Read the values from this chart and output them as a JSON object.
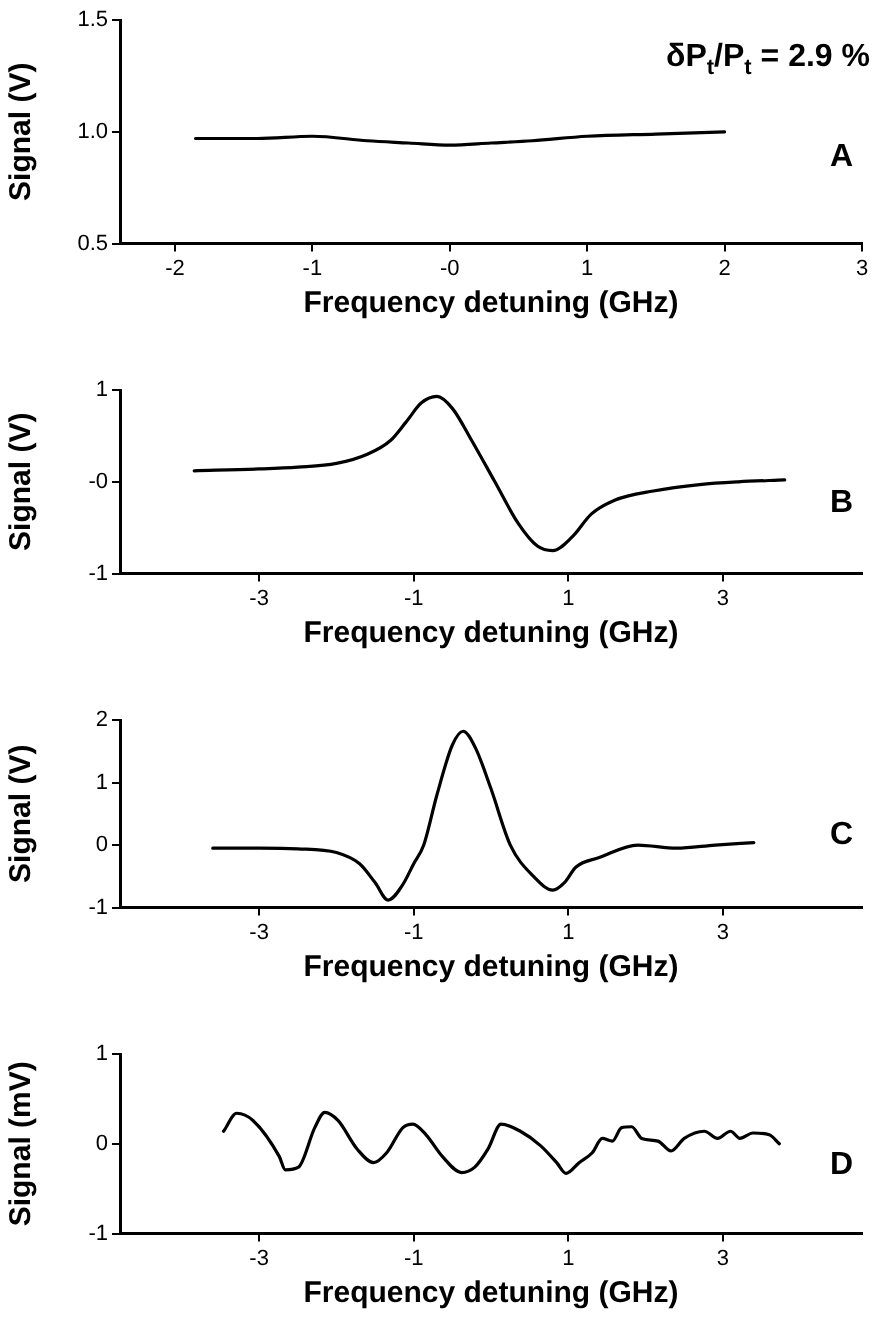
{
  "chart_data": [
    {
      "type": "line",
      "xlabel": "Frequency detuning (GHz)",
      "ylabel": "Signal (V)",
      "xlim": [
        -2.4,
        3
      ],
      "xticks": [
        -2,
        -1,
        {
          "value": 0,
          "label": "-0"
        },
        1,
        2,
        3
      ],
      "ylim": [
        0.5,
        1.5
      ],
      "yticks": [
        0.5,
        {
          "value": 1,
          "label": "1.0"
        },
        1.5
      ],
      "grid": false,
      "legend": false,
      "marker": "none",
      "annotations": [
        "δP$_{t}$/P$_{t}$ = 2.9 %",
        "A"
      ],
      "series": [
        {
          "color": "#000000",
          "x": [
            -1.85,
            -1.4,
            -1,
            -0.6,
            -0.3,
            0,
            0.3,
            0.6,
            1,
            1.5,
            2
          ],
          "values": [
            0.97,
            0.97,
            0.98,
            0.96,
            0.95,
            0.94,
            0.95,
            0.96,
            0.98,
            0.99,
            1.0
          ]
        }
      ]
    },
    {
      "type": "line",
      "xlabel": "Frequency detuning (GHz)",
      "ylabel": "Signal (V)",
      "xlim": [
        -4.8,
        4.8
      ],
      "xticks": [
        -3,
        -1,
        1,
        3
      ],
      "ylim": [
        -1,
        1
      ],
      "yticks": [
        -1,
        {
          "value": 0,
          "label": "-0"
        },
        1
      ],
      "grid": false,
      "legend": false,
      "marker": "none",
      "annotations": [
        "B"
      ],
      "series": [
        {
          "color": "#000000",
          "x": [
            -3.84,
            -3,
            -2.5,
            -2,
            -1.6,
            -1.3,
            -1.1,
            -0.9,
            -0.7,
            -0.5,
            -0.25,
            0.05,
            0.35,
            0.6,
            0.8,
            1.05,
            1.3,
            1.6,
            2.1,
            2.7,
            3.2,
            3.8
          ],
          "values": [
            0.12,
            0.14,
            0.16,
            0.2,
            0.3,
            0.45,
            0.65,
            0.86,
            0.93,
            0.8,
            0.45,
            0,
            -0.45,
            -0.7,
            -0.75,
            -0.6,
            -0.35,
            -0.2,
            -0.1,
            -0.03,
            0,
            0.02
          ]
        }
      ]
    },
    {
      "type": "line",
      "xlabel": "Frequency detuning (GHz)",
      "ylabel": "Signal (V)",
      "xlim": [
        -4.8,
        4.8
      ],
      "xticks": [
        -3,
        -1,
        1,
        3
      ],
      "ylim": [
        -1,
        2
      ],
      "yticks": [
        -1,
        0,
        1,
        2
      ],
      "grid": false,
      "legend": false,
      "marker": "none",
      "annotations": [
        "C"
      ],
      "series": [
        {
          "color": "#000000",
          "x": [
            -3.6,
            -3,
            -2.5,
            -2,
            -1.7,
            -1.5,
            -1.33,
            -1.15,
            -1,
            -0.87,
            -0.7,
            -0.5,
            -0.36,
            -0.2,
            0,
            0.25,
            0.55,
            0.8,
            0.95,
            1.1,
            1.4,
            1.9,
            2.4,
            2.9,
            3.4
          ],
          "values": [
            -0.05,
            -0.05,
            -0.06,
            -0.12,
            -0.3,
            -0.6,
            -0.88,
            -0.65,
            -0.3,
            0,
            0.8,
            1.6,
            1.82,
            1.55,
            0.9,
            0,
            -0.5,
            -0.72,
            -0.6,
            -0.35,
            -0.2,
            0,
            -0.05,
            0,
            0.04
          ]
        }
      ]
    },
    {
      "type": "line",
      "xlabel": "Frequency detuning (GHz)",
      "ylabel": "Signal (mV)",
      "xlim": [
        -4.8,
        4.8
      ],
      "xticks": [
        -3,
        -1,
        1,
        3
      ],
      "ylim": [
        -1,
        1
      ],
      "yticks": [
        -1,
        0,
        1
      ],
      "grid": false,
      "legend": false,
      "marker": "none",
      "annotations": [
        "D"
      ],
      "series": [
        {
          "color": "#000000",
          "x": [
            -3.46,
            -3.29,
            -3.08,
            -2.74,
            -2.66,
            -2.49,
            -2.28,
            -2.15,
            -1.98,
            -1.73,
            -1.52,
            -1.35,
            -1.14,
            -1.01,
            -0.84,
            -0.63,
            -0.38,
            -0.21,
            -0.04,
            0.13,
            0.38,
            0.64,
            0.85,
            0.97,
            1.14,
            1.31,
            1.44,
            1.57,
            1.69,
            1.82,
            1.95,
            2.16,
            2.33,
            2.5,
            2.76,
            2.93,
            3.1,
            3.22,
            3.39,
            3.6,
            3.73
          ],
          "values": [
            0.14,
            0.34,
            0.26,
            -0.14,
            -0.29,
            -0.26,
            0.18,
            0.35,
            0.26,
            -0.06,
            -0.21,
            -0.1,
            0.18,
            0.22,
            0.1,
            -0.14,
            -0.32,
            -0.26,
            -0.06,
            0.22,
            0.14,
            -0.02,
            -0.21,
            -0.33,
            -0.21,
            -0.1,
            0.06,
            0.03,
            0.18,
            0.19,
            0.06,
            0.03,
            -0.08,
            0.06,
            0.14,
            0.06,
            0.14,
            0.06,
            0.12,
            0.1,
            0
          ]
        }
      ]
    }
  ]
}
